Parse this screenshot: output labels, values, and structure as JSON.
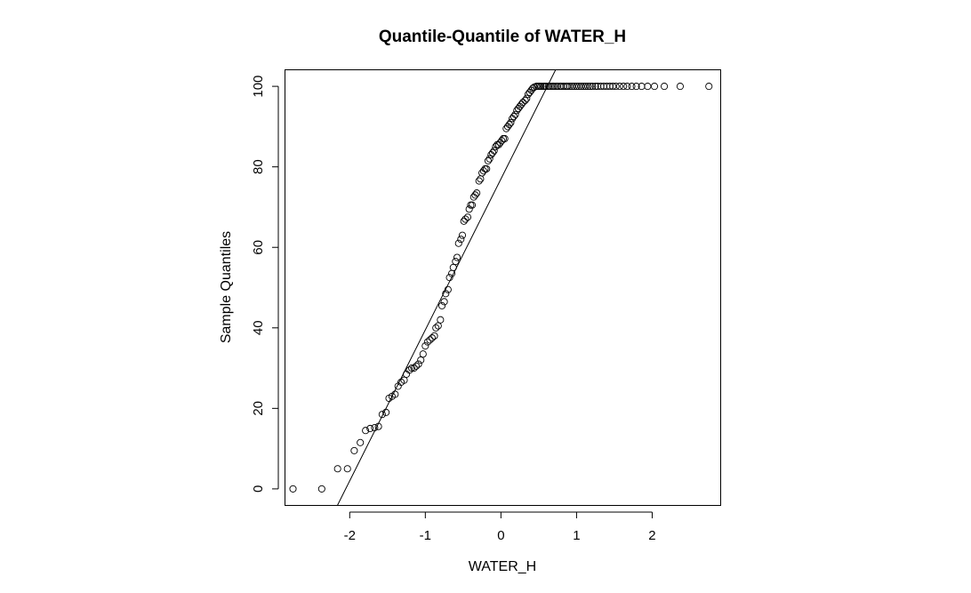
{
  "chart_data": {
    "type": "scatter",
    "title": "Quantile-Quantile of WATER_H",
    "xlabel": "WATER_H",
    "ylabel": "Sample Quantiles",
    "xlim": [
      -2.85,
      2.9
    ],
    "ylim": [
      -4,
      104
    ],
    "xticks": [
      -2,
      -1,
      0,
      1,
      2
    ],
    "xtick_labels": [
      "-2",
      "-1",
      "0",
      "1",
      "2"
    ],
    "yticks": [
      0,
      20,
      40,
      60,
      80,
      100
    ],
    "ytick_labels": [
      "0",
      "20",
      "40",
      "60",
      "80",
      "100"
    ],
    "grid": false,
    "legend": "none",
    "reference_line": {
      "intercept": 77,
      "slope": 37.5
    },
    "points": {
      "x": [
        -2.75,
        -2.37,
        -2.16,
        -2.03,
        -1.94,
        -1.86,
        -1.79,
        -1.73,
        -1.67,
        -1.62,
        -1.57,
        -1.52,
        -1.48,
        -1.44,
        -1.4,
        -1.36,
        -1.32,
        -1.28,
        -1.25,
        -1.21,
        -1.18,
        -1.15,
        -1.12,
        -1.09,
        -1.06,
        -1.03,
        -1.0,
        -0.97,
        -0.94,
        -0.91,
        -0.88,
        -0.86,
        -0.83,
        -0.8,
        -0.78,
        -0.75,
        -0.73,
        -0.7,
        -0.68,
        -0.65,
        -0.63,
        -0.6,
        -0.58,
        -0.56,
        -0.53,
        -0.51,
        -0.49,
        -0.47,
        -0.44,
        -0.42,
        -0.4,
        -0.38,
        -0.36,
        -0.34,
        -0.32,
        -0.29,
        -0.27,
        -0.25,
        -0.23,
        -0.21,
        -0.19,
        -0.17,
        -0.15,
        -0.13,
        -0.11,
        -0.09,
        -0.07,
        -0.05,
        -0.03,
        -0.01,
        0.01,
        0.03,
        0.05,
        0.07,
        0.09,
        0.11,
        0.13,
        0.15,
        0.17,
        0.19,
        0.21,
        0.23,
        0.25,
        0.27,
        0.29,
        0.32,
        0.34,
        0.36,
        0.38,
        0.4,
        0.42,
        0.44,
        0.47,
        0.49,
        0.51,
        0.53,
        0.56,
        0.58,
        0.6,
        0.63,
        0.65,
        0.68,
        0.7,
        0.73,
        0.75,
        0.78,
        0.8,
        0.83,
        0.86,
        0.88,
        0.91,
        0.94,
        0.97,
        1.0,
        1.03,
        1.06,
        1.09,
        1.12,
        1.15,
        1.18,
        1.21,
        1.25,
        1.28,
        1.32,
        1.36,
        1.4,
        1.44,
        1.48,
        1.52,
        1.57,
        1.62,
        1.67,
        1.73,
        1.79,
        1.86,
        1.94,
        2.03,
        2.16,
        2.37,
        2.75
      ],
      "y": [
        0,
        0,
        5,
        5,
        9.5,
        11.5,
        14.5,
        15,
        15.2,
        15.5,
        18.5,
        19,
        22.5,
        23,
        23.5,
        25.5,
        26.5,
        27,
        28.5,
        29.5,
        30,
        30,
        30.5,
        31,
        32,
        33.5,
        35.5,
        36.5,
        37,
        37.5,
        38,
        40,
        40.5,
        42,
        45.5,
        46.5,
        48.5,
        49.5,
        52.5,
        53.5,
        55,
        56.5,
        57.5,
        61,
        62,
        63,
        66.5,
        67,
        67.5,
        69.5,
        70.5,
        70.5,
        72.5,
        73,
        73.5,
        76.5,
        77,
        78.5,
        79,
        79.5,
        79.5,
        81.5,
        82,
        83,
        83.5,
        84,
        85,
        85.5,
        85.5,
        86,
        86.5,
        87,
        87,
        89.5,
        90,
        90.5,
        91,
        92,
        92.5,
        93,
        94,
        94.5,
        95,
        95.5,
        96,
        96.5,
        97,
        98,
        98.5,
        99,
        99.5,
        99.8,
        100,
        100,
        100,
        100,
        100,
        100,
        100,
        100,
        100,
        100,
        100,
        100,
        100,
        100,
        100,
        100,
        100,
        100,
        100,
        100,
        100,
        100,
        100,
        100,
        100,
        100,
        100,
        100,
        100,
        100,
        100,
        100,
        100,
        100,
        100,
        100,
        100,
        100,
        100,
        100,
        100,
        100,
        100,
        100,
        100,
        100,
        100,
        100
      ]
    }
  }
}
